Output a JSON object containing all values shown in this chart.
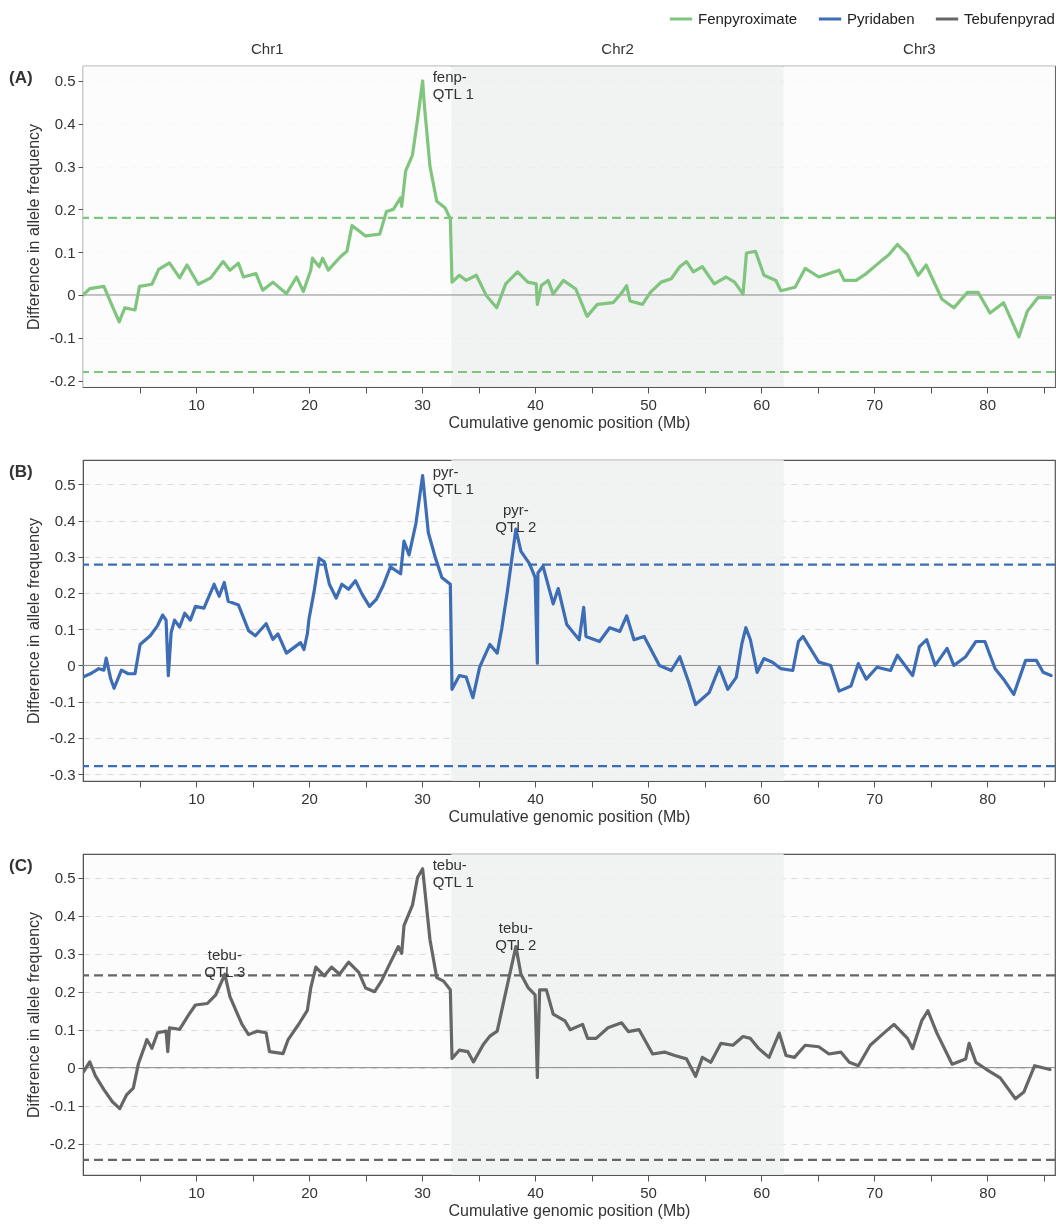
{
  "chart_data": [
    {
      "type": "line",
      "title": "(A)",
      "xlabel": "Cumulative genomic position (Mb)",
      "ylabel": "Difference in allele frequency",
      "xlim": [
        0,
        86
      ],
      "ylim": [
        -0.215,
        0.535
      ],
      "xticks": [
        {
          "value": 5,
          "label": null
        },
        10,
        {
          "value": 15,
          "label": null
        },
        20,
        {
          "value": 25,
          "label": null
        },
        30,
        {
          "value": 35,
          "label": null
        },
        40,
        {
          "value": 45,
          "label": null
        },
        50,
        {
          "value": 55,
          "label": null
        },
        60,
        {
          "value": 65,
          "label": null
        },
        70,
        {
          "value": 75,
          "label": null
        },
        80,
        {
          "value": 85,
          "label": null
        }
      ],
      "yticks": [
        -0.2,
        -0.1,
        0,
        0.1,
        0.2,
        0.3,
        0.4,
        0.5
      ],
      "grid": "y",
      "legend": "top right",
      "bands": [
        {
          "axis": "x",
          "from": 0,
          "to": 32.6,
          "label": "Chr1",
          "color": "#fcfcfc"
        },
        {
          "axis": "x",
          "from": 32.6,
          "to": 62,
          "label": "Chr2",
          "color": "#eef0f0"
        },
        {
          "axis": "x",
          "from": 62,
          "to": 86,
          "label": "Chr3",
          "color": "#fcfcfc"
        }
      ],
      "ref_lines": [
        {
          "axis": "y",
          "value": 0.18,
          "color": "#7fc57e",
          "line_style": "dashed"
        },
        {
          "axis": "y",
          "value": -0.18,
          "color": "#7fc57e",
          "line_style": "dashed"
        },
        {
          "axis": "y",
          "value": 0,
          "color": "#8a8a8a",
          "line_style": "solid"
        }
      ],
      "annotations": [
        {
          "text": "fenp-\nQTL 1",
          "x": 30.05,
          "y": 0.5
        }
      ],
      "series": [
        {
          "name": "Fenpyroximate",
          "color": "#7fc57e",
          "x": [
            0,
            0.6,
            1.85,
            2.5,
            3.2,
            3.7,
            4.6,
            5.0,
            6.1,
            6.7,
            7.65,
            8.55,
            9.2,
            10.2,
            11.3,
            12.4,
            13.0,
            13.75,
            14.2,
            15.3,
            15.9,
            16.8,
            18.0,
            18.9,
            19.5,
            20.15,
            20.3,
            20.9,
            21.2,
            21.7,
            22.8,
            23.35,
            23.8,
            24.4,
            25.0,
            26.25,
            26.85,
            27.45,
            28.1,
            28.2,
            28.55,
            29.15,
            29.6,
            30.05,
            30.2,
            30.7,
            31.3,
            32.05,
            32.5,
            32.65,
            33.3,
            33.9,
            34.8,
            35.7,
            36.6,
            37.4,
            38.45,
            39.35,
            40.1,
            40.2,
            40.55,
            41.15,
            41.6,
            42.5,
            43.6,
            44.6,
            45.5,
            46.9,
            47.7,
            48.1,
            48.4,
            49.5,
            50.2,
            51.15,
            52.05,
            52.8,
            53.4,
            54.0,
            54.8,
            55.85,
            56.9,
            57.65,
            58.4,
            58.7,
            59.5,
            60.25,
            61.3,
            61.75,
            63.0,
            63.9,
            65.1,
            66.9,
            67.35,
            68.4,
            69.3,
            70.55,
            71.3,
            72.05,
            72.95,
            73.9,
            74.6,
            76.0,
            77.05,
            78.25,
            79.2,
            80.25,
            81.45,
            82.8,
            83.55,
            84.5,
            85.6
          ],
          "values": [
            0,
            0.015,
            0.02,
            -0.02,
            -0.063,
            -0.03,
            -0.035,
            0.02,
            0.025,
            0.06,
            0.075,
            0.04,
            0.07,
            0.025,
            0.04,
            0.078,
            0.058,
            0.074,
            0.042,
            0.05,
            0.011,
            0.03,
            0.003,
            0.042,
            0.008,
            0.058,
            0.086,
            0.066,
            0.086,
            0.058,
            0.09,
            0.102,
            0.162,
            0.15,
            0.138,
            0.142,
            0.195,
            0.2,
            0.227,
            0.207,
            0.29,
            0.327,
            0.41,
            0.5,
            0.444,
            0.3,
            0.219,
            0.203,
            0.178,
            0.03,
            0.046,
            0.034,
            0.046,
            -0.002,
            -0.03,
            0.026,
            0.054,
            0.03,
            0.026,
            -0.022,
            0.022,
            0.034,
            0.002,
            0.034,
            0.014,
            -0.05,
            -0.022,
            -0.018,
            0.006,
            0.022,
            -0.014,
            -0.022,
            0.006,
            0.03,
            0.038,
            0.066,
            0.078,
            0.054,
            0.066,
            0.026,
            0.042,
            0.03,
            0.002,
            0.098,
            0.102,
            0.046,
            0.034,
            0.01,
            0.018,
            0.062,
            0.042,
            0.058,
            0.034,
            0.034,
            0.05,
            0.078,
            0.094,
            0.118,
            0.094,
            0.046,
            0.07,
            -0.01,
            -0.03,
            0.006,
            0.006,
            -0.042,
            -0.018,
            -0.098,
            -0.038,
            -0.006,
            -0.006
          ]
        }
      ]
    },
    {
      "type": "line",
      "title": "(B)",
      "xlabel": "Cumulative genomic position (Mb)",
      "ylabel": "Difference in allele frequency",
      "xlim": [
        0,
        86
      ],
      "ylim": [
        -0.319,
        0.567
      ],
      "xticks": [
        {
          "value": 5,
          "label": null
        },
        10,
        {
          "value": 15,
          "label": null
        },
        20,
        {
          "value": 25,
          "label": null
        },
        30,
        {
          "value": 35,
          "label": null
        },
        40,
        {
          "value": 45,
          "label": null
        },
        50,
        {
          "value": 55,
          "label": null
        },
        60,
        {
          "value": 65,
          "label": null
        },
        70,
        {
          "value": 75,
          "label": null
        },
        80,
        {
          "value": 85,
          "label": null
        }
      ],
      "yticks": [
        -0.3,
        -0.2,
        -0.1,
        0,
        0.1,
        0.2,
        0.3,
        0.4,
        0.5
      ],
      "grid": "y",
      "legend": "top right",
      "bands": [
        {
          "axis": "x",
          "from": 32.6,
          "to": 62,
          "color": "#eef0f0"
        }
      ],
      "ref_lines": [
        {
          "axis": "y",
          "value": 0.278,
          "color": "#3d6db4",
          "line_style": "dashed"
        },
        {
          "axis": "y",
          "value": -0.278,
          "color": "#3d6db4",
          "line_style": "dashed"
        },
        {
          "axis": "y",
          "value": 0,
          "color": "#8a8a8a",
          "line_style": "solid"
        }
      ],
      "annotations": [
        {
          "text": "pyr-\nQTL 1",
          "x": 30.05,
          "y": 0.524
        },
        {
          "text": "pyr-\nQTL 2",
          "x": 38.3,
          "y": 0.376
        }
      ],
      "series": [
        {
          "name": "Pyridaben",
          "color": "#3d6db4",
          "x": [
            0,
            0.65,
            1.4,
            1.85,
            2.05,
            2.45,
            2.75,
            3.4,
            4.0,
            4.6,
            5.05,
            5.95,
            6.6,
            7.05,
            7.35,
            7.55,
            7.8,
            8.1,
            8.55,
            9.0,
            9.5,
            9.95,
            10.7,
            11.6,
            12.05,
            12.5,
            12.85,
            13.75,
            14.65,
            15.25,
            16.2,
            16.8,
            17.25,
            18.0,
            19.25,
            19.55,
            19.85,
            20.0,
            20.45,
            20.9,
            21.35,
            21.8,
            22.4,
            22.9,
            23.5,
            24.1,
            24.7,
            25.35,
            25.95,
            26.55,
            27.2,
            28.1,
            28.4,
            28.85,
            29.45,
            30.05,
            30.55,
            31.15,
            31.75,
            32.5,
            32.65,
            33.3,
            33.9,
            34.5,
            35.1,
            36.0,
            36.65,
            37.05,
            37.55,
            38.3,
            38.75,
            39.5,
            40.0,
            40.2,
            40.25,
            40.7,
            41.6,
            42.05,
            42.8,
            43.9,
            44.3,
            44.5,
            45.7,
            46.6,
            47.5,
            48.1,
            48.75,
            49.65,
            51.0,
            52.05,
            52.8,
            53.6,
            54.2,
            55.4,
            56.3,
            57.05,
            57.8,
            58.3,
            58.65,
            59.05,
            59.65,
            60.25,
            61.0,
            61.75,
            62.8,
            63.3,
            63.7,
            65.1,
            66.15,
            66.9,
            67.95,
            68.6,
            69.3,
            70.25,
            71.45,
            72.05,
            73.4,
            74.0,
            74.65,
            75.4,
            76.45,
            77.05,
            78.1,
            79.0,
            79.8,
            80.7,
            81.45,
            82.35,
            83.4,
            84.35,
            84.95,
            85.65
          ],
          "values": [
            -0.032,
            -0.023,
            -0.009,
            -0.013,
            0.02,
            -0.037,
            -0.063,
            -0.013,
            -0.023,
            -0.023,
            0.058,
            0.082,
            0.11,
            0.139,
            0.125,
            -0.028,
            0.091,
            0.125,
            0.106,
            0.144,
            0.125,
            0.163,
            0.158,
            0.224,
            0.191,
            0.229,
            0.177,
            0.167,
            0.096,
            0.082,
            0.115,
            0.072,
            0.087,
            0.034,
            0.063,
            0.044,
            0.087,
            0.129,
            0.205,
            0.296,
            0.286,
            0.224,
            0.186,
            0.224,
            0.21,
            0.234,
            0.196,
            0.163,
            0.182,
            0.22,
            0.272,
            0.253,
            0.343,
            0.305,
            0.391,
            0.524,
            0.367,
            0.3,
            0.243,
            0.224,
            -0.066,
            -0.028,
            -0.032,
            -0.089,
            -0.004,
            0.058,
            0.034,
            0.101,
            0.205,
            0.376,
            0.315,
            0.281,
            0.243,
            0.006,
            0.255,
            0.274,
            0.17,
            0.212,
            0.113,
            0.071,
            0.16,
            0.08,
            0.066,
            0.104,
            0.094,
            0.137,
            0.071,
            0.08,
            0.0,
            -0.014,
            0.024,
            -0.047,
            -0.108,
            -0.075,
            -0.005,
            -0.066,
            -0.033,
            0.061,
            0.104,
            0.071,
            -0.019,
            0.019,
            0.009,
            -0.009,
            -0.014,
            0.066,
            0.08,
            0.009,
            0.0,
            -0.071,
            -0.057,
            0.005,
            -0.038,
            -0.005,
            -0.014,
            0.028,
            -0.028,
            0.052,
            0.071,
            0.0,
            0.047,
            0.0,
            0.024,
            0.066,
            0.066,
            -0.009,
            -0.038,
            -0.08,
            0.014,
            0.014,
            -0.019,
            -0.028
          ]
        }
      ]
    },
    {
      "type": "line",
      "title": "(C)",
      "xlabel": "Cumulative genomic position (Mb)",
      "ylabel": "Difference in allele frequency",
      "xlim": [
        0,
        86
      ],
      "ylim": [
        -0.283,
        0.563
      ],
      "xticks": [
        {
          "value": 5,
          "label": null
        },
        10,
        {
          "value": 15,
          "label": null
        },
        20,
        {
          "value": 25,
          "label": null
        },
        30,
        {
          "value": 35,
          "label": null
        },
        40,
        {
          "value": 45,
          "label": null
        },
        50,
        {
          "value": 55,
          "label": null
        },
        60,
        {
          "value": 65,
          "label": null
        },
        70,
        {
          "value": 75,
          "label": null
        },
        80,
        {
          "value": 85,
          "label": null
        }
      ],
      "yticks": [
        -0.2,
        -0.1,
        0,
        0.1,
        0.2,
        0.3,
        0.4,
        0.5
      ],
      "grid": "y",
      "legend": "top right",
      "bands": [
        {
          "axis": "x",
          "from": 32.6,
          "to": 62,
          "color": "#eef0f0"
        }
      ],
      "ref_lines": [
        {
          "axis": "y",
          "value": 0.243,
          "color": "#666666",
          "line_style": "dashed"
        },
        {
          "axis": "y",
          "value": -0.243,
          "color": "#666666",
          "line_style": "dashed"
        },
        {
          "axis": "y",
          "value": 0,
          "color": "#8a8a8a",
          "line_style": "solid"
        }
      ],
      "annotations": [
        {
          "text": "tebu-\nQTL 1",
          "x": 30.05,
          "y": 0.524
        },
        {
          "text": "tebu-\nQTL 2",
          "x": 38.3,
          "y": 0.319
        },
        {
          "text": "tebu-\nQTL 3",
          "x": 12.55,
          "y": 0.246
        }
      ],
      "series": [
        {
          "name": "Tebufenpyrad",
          "color": "#666666",
          "x": [
            0,
            0.6,
            1.1,
            1.85,
            2.6,
            3.25,
            3.85,
            4.45,
            4.9,
            5.5,
            5.65,
            6.1,
            6.6,
            7.35,
            7.5,
            7.65,
            8.55,
            9.3,
            9.95,
            11.0,
            11.75,
            12.55,
            13.0,
            14.05,
            14.65,
            15.4,
            16.2,
            16.5,
            17.7,
            18.15,
            19.1,
            19.85,
            20.15,
            20.6,
            21.35,
            22.0,
            22.7,
            23.5,
            24.4,
            25.0,
            25.8,
            26.4,
            27.15,
            27.9,
            28.2,
            28.4,
            29.15,
            29.6,
            30.05,
            30.7,
            31.3,
            31.9,
            32.5,
            32.65,
            33.3,
            34.05,
            34.55,
            35.4,
            36.0,
            36.65,
            37.25,
            38.3,
            38.75,
            39.4,
            40.0,
            40.2,
            40.4,
            41.0,
            41.6,
            42.65,
            43.1,
            44.2,
            44.65,
            45.4,
            46.45,
            47.65,
            48.25,
            49.2,
            50.4,
            51.45,
            52.35,
            53.4,
            54.2,
            54.8,
            55.55,
            56.45,
            57.5,
            58.4,
            59.05,
            59.8,
            60.7,
            61.6,
            62.2,
            62.95,
            63.9,
            65.1,
            66.0,
            67.05,
            67.8,
            68.6,
            69.65,
            70.85,
            71.75,
            72.95,
            73.4,
            74.2,
            74.75,
            75.55,
            76.9,
            78.1,
            78.4,
            79.0,
            79.95,
            81.15,
            82.5,
            83.25,
            84.2,
            85.55
          ],
          "values": [
            -0.013,
            0.015,
            -0.022,
            -0.058,
            -0.09,
            -0.108,
            -0.072,
            -0.054,
            0.01,
            0.06,
            0.074,
            0.051,
            0.092,
            0.096,
            0.042,
            0.105,
            0.101,
            0.137,
            0.165,
            0.169,
            0.192,
            0.246,
            0.187,
            0.115,
            0.087,
            0.096,
            0.092,
            0.042,
            0.037,
            0.074,
            0.115,
            0.151,
            0.21,
            0.265,
            0.242,
            0.265,
            0.246,
            0.278,
            0.251,
            0.21,
            0.2,
            0.228,
            0.274,
            0.319,
            0.301,
            0.374,
            0.428,
            0.501,
            0.524,
            0.337,
            0.237,
            0.228,
            0.205,
            0.024,
            0.046,
            0.042,
            0.015,
            0.06,
            0.083,
            0.096,
            0.178,
            0.319,
            0.246,
            0.21,
            0.192,
            -0.026,
            0.205,
            0.205,
            0.141,
            0.123,
            0.1,
            0.114,
            0.077,
            0.077,
            0.105,
            0.118,
            0.095,
            0.1,
            0.036,
            0.041,
            0.032,
            0.023,
            -0.023,
            0.027,
            0.014,
            0.064,
            0.059,
            0.082,
            0.077,
            0.05,
            0.027,
            0.091,
            0.032,
            0.027,
            0.059,
            0.055,
            0.036,
            0.041,
            0.014,
            0.005,
            0.059,
            0.091,
            0.114,
            0.077,
            0.05,
            0.123,
            0.15,
            0.091,
            0.009,
            0.023,
            0.064,
            0.014,
            -0.005,
            -0.027,
            -0.082,
            -0.064,
            0.005,
            -0.005
          ]
        }
      ]
    }
  ]
}
